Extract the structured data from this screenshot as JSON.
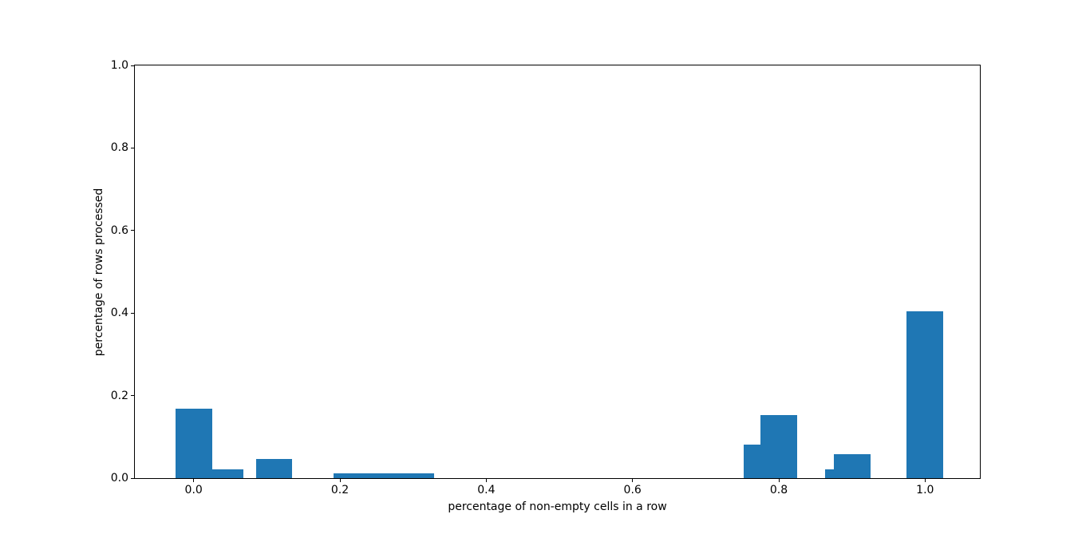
{
  "figure": {
    "background_color": "#ffffff",
    "plot_background_color": "#ffffff",
    "bar_color": "#1f77b4",
    "axis_color": "#000000",
    "text_color": "#000000"
  },
  "chart_data": {
    "type": "bar",
    "title": "",
    "xlabel": "percentage of non-empty cells in a row",
    "ylabel": "percentage of rows processed",
    "xlim": [
      -0.0804,
      1.0749
    ],
    "ylim": [
      0.0,
      1.0
    ],
    "xticks": [
      0.0,
      0.2,
      0.4,
      0.6,
      0.8,
      1.0
    ],
    "yticks": [
      0.0,
      0.2,
      0.4,
      0.6,
      0.8,
      1.0
    ],
    "xtick_labels": [
      "0.0",
      "0.2",
      "0.4",
      "0.6",
      "0.8",
      "1.0"
    ],
    "ytick_labels": [
      "0.0",
      "0.2",
      "0.4",
      "0.6",
      "0.8",
      "1.0"
    ],
    "grid": false,
    "legend": null,
    "bar_width": 0.05,
    "bars": [
      {
        "x": 0.0,
        "height": 0.168
      },
      {
        "x": 0.043,
        "height": 0.022
      },
      {
        "x": 0.11,
        "height": 0.047
      },
      {
        "x": 0.216,
        "height": 0.012
      },
      {
        "x": 0.25,
        "height": 0.012
      },
      {
        "x": 0.28,
        "height": 0.012
      },
      {
        "x": 0.304,
        "height": 0.012
      },
      {
        "x": 0.777,
        "height": 0.082
      },
      {
        "x": 0.8,
        "height": 0.153
      },
      {
        "x": 0.888,
        "height": 0.022
      },
      {
        "x": 0.9,
        "height": 0.058
      },
      {
        "x": 1.0,
        "height": 0.404
      }
    ]
  }
}
